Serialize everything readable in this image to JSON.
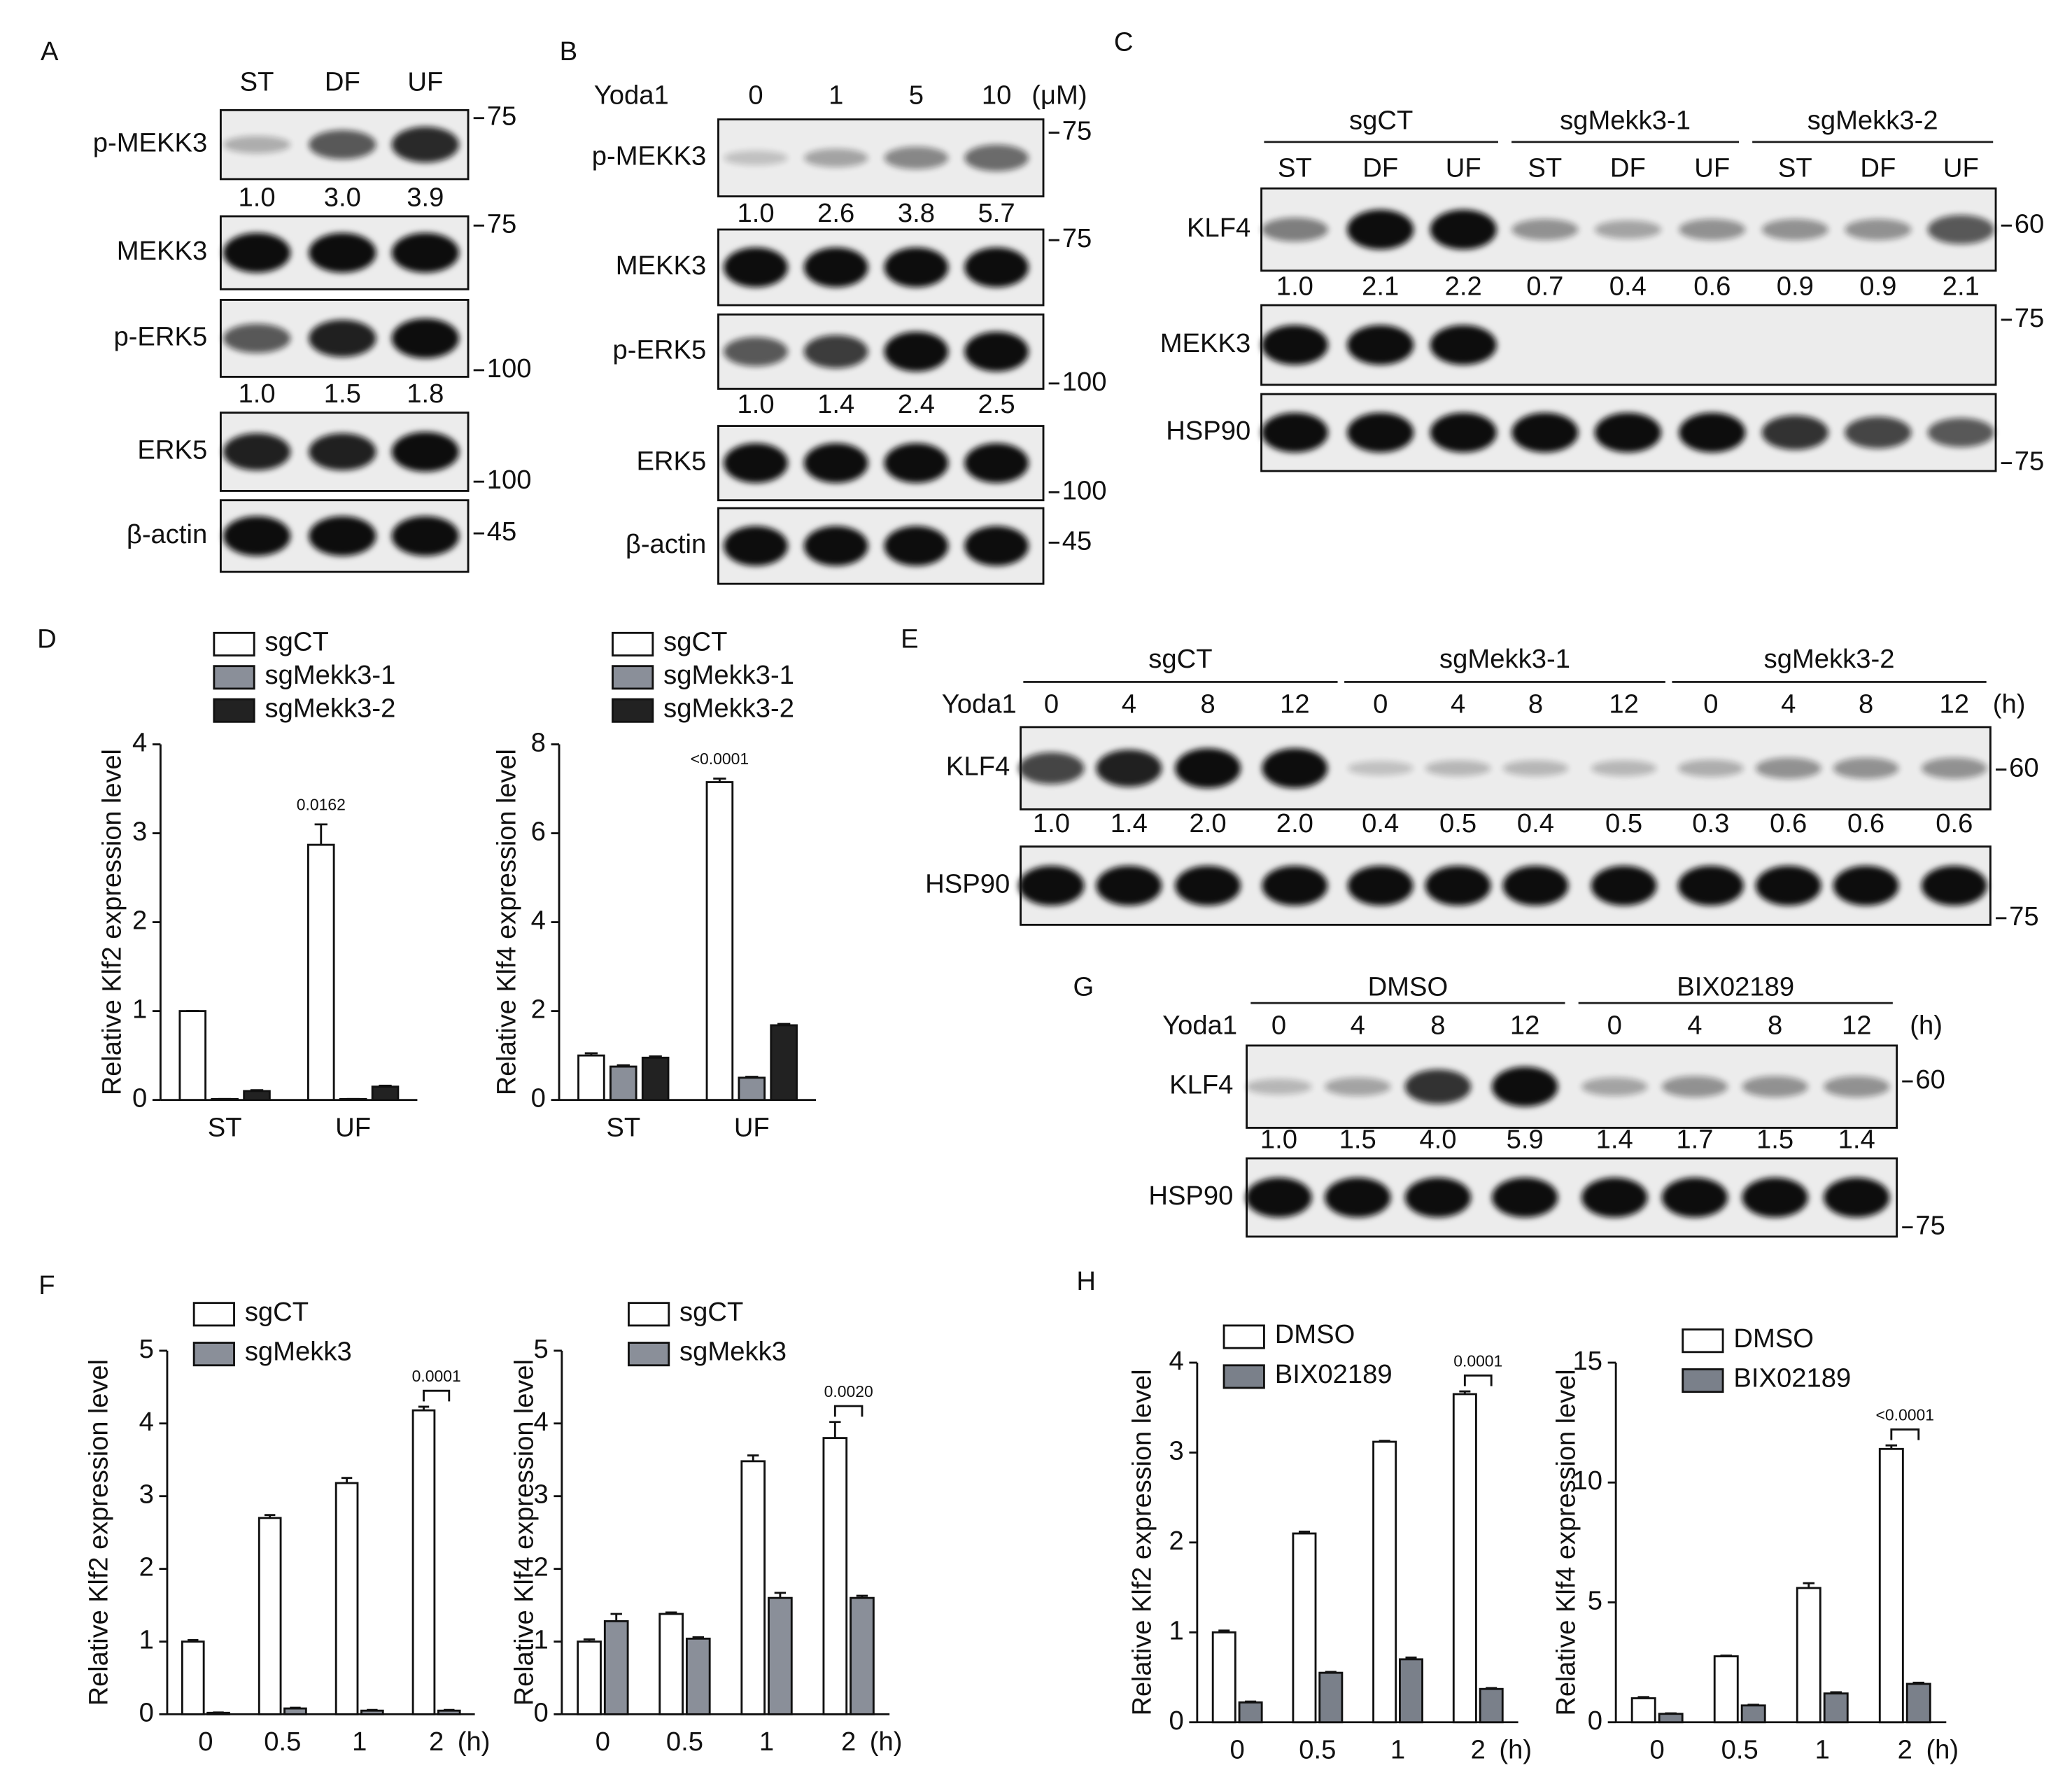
{
  "figure": {
    "panel_labels": [
      "D",
      "F",
      "H"
    ]
  },
  "blots": [
    {
      "label": "A",
      "lanes": [
        "ST",
        "DF",
        "UF"
      ],
      "rows": [
        {
          "name": "p-MEKK3",
          "marker": "75",
          "quant": [
            "1.0",
            "3.0",
            "3.9"
          ]
        },
        {
          "name": "MEKK3",
          "marker": "75"
        },
        {
          "name": "p-ERK5",
          "marker": "100",
          "quant": [
            "1.0",
            "1.5",
            "1.8"
          ]
        },
        {
          "name": "ERK5",
          "marker": "100"
        },
        {
          "name": "β-actin",
          "marker": "45"
        }
      ]
    },
    {
      "label": "B",
      "treatment": "Yoda1",
      "lanes": [
        "0",
        "1",
        "5",
        "10"
      ],
      "unit": "(μM)",
      "rows": [
        {
          "name": "p-MEKK3",
          "marker": "75",
          "quant": [
            "1.0",
            "2.6",
            "3.8",
            "5.7"
          ]
        },
        {
          "name": "MEKK3",
          "marker": "75"
        },
        {
          "name": "p-ERK5",
          "marker": "100",
          "quant": [
            "1.0",
            "1.4",
            "2.4",
            "2.5"
          ]
        },
        {
          "name": "ERK5",
          "marker": "100"
        },
        {
          "name": "β-actin",
          "marker": "45"
        }
      ]
    },
    {
      "label": "C",
      "groups": [
        "sgCT",
        "sgMekk3-1",
        "sgMekk3-2"
      ],
      "lanes": [
        "ST",
        "DF",
        "UF",
        "ST",
        "DF",
        "UF",
        "ST",
        "DF",
        "UF"
      ],
      "rows": [
        {
          "name": "KLF4",
          "marker": "60",
          "quant": [
            "1.0",
            "2.1",
            "2.2",
            "0.7",
            "0.4",
            "0.6",
            "0.9",
            "0.9",
            "2.1"
          ]
        },
        {
          "name": "MEKK3",
          "marker": "75"
        },
        {
          "name": "HSP90",
          "marker": "75"
        }
      ]
    },
    {
      "label": "E",
      "groups": [
        "sgCT",
        "sgMekk3-1",
        "sgMekk3-2"
      ],
      "treatment": "Yoda1",
      "lanes": [
        "0",
        "4",
        "8",
        "12",
        "0",
        "4",
        "8",
        "12",
        "0",
        "4",
        "8",
        "12"
      ],
      "unit": "(h)",
      "rows": [
        {
          "name": "KLF4",
          "marker": "60",
          "quant": [
            "1.0",
            "1.4",
            "2.0",
            "2.0",
            "0.4",
            "0.5",
            "0.4",
            "0.5",
            "0.3",
            "0.6",
            "0.6",
            "0.6"
          ]
        },
        {
          "name": "HSP90",
          "marker": "75"
        }
      ]
    },
    {
      "label": "G",
      "groups": [
        "DMSO",
        "BIX02189"
      ],
      "treatment": "Yoda1",
      "lanes": [
        "0",
        "4",
        "8",
        "12",
        "0",
        "4",
        "8",
        "12"
      ],
      "unit": "(h)",
      "rows": [
        {
          "name": "KLF4",
          "marker": "60",
          "quant": [
            "1.0",
            "1.5",
            "4.0",
            "5.9",
            "1.4",
            "1.7",
            "1.5",
            "1.4"
          ]
        },
        {
          "name": "HSP90",
          "marker": "75"
        }
      ]
    }
  ],
  "chart_data": [
    {
      "type": "bar",
      "y_label": "Relative Klf2 expression level",
      "categories": [
        "ST",
        "UF"
      ],
      "series": [
        {
          "name": "sgCT",
          "color": "#ffffff",
          "values": [
            1.0,
            2.87
          ],
          "errors": [
            0,
            0.23
          ]
        },
        {
          "name": "sgMekk3-1",
          "color": "#8a8f99",
          "values": [
            0.01,
            0.01
          ],
          "errors": [
            0,
            0
          ]
        },
        {
          "name": "sgMekk3-2",
          "color": "#222222",
          "values": [
            0.1,
            0.15
          ],
          "errors": [
            0.01,
            0.01
          ]
        }
      ],
      "ylim": [
        0,
        4
      ],
      "yticks": [
        0,
        1,
        2,
        3,
        4
      ],
      "annotation": "0.0162"
    },
    {
      "type": "bar",
      "y_label": "Relative Klf4 expression level",
      "categories": [
        "ST",
        "UF"
      ],
      "series": [
        {
          "name": "sgCT",
          "color": "#ffffff",
          "values": [
            1.0,
            7.15
          ],
          "errors": [
            0.05,
            0.08
          ]
        },
        {
          "name": "sgMekk3-1",
          "color": "#8a8f99",
          "values": [
            0.75,
            0.5
          ],
          "errors": [
            0.03,
            0.02
          ]
        },
        {
          "name": "sgMekk3-2",
          "color": "#222222",
          "values": [
            0.95,
            1.68
          ],
          "errors": [
            0.03,
            0.03
          ]
        }
      ],
      "ylim": [
        0,
        8
      ],
      "yticks": [
        0,
        2,
        4,
        6,
        8
      ],
      "annotation": "<0.0001"
    },
    {
      "type": "bar",
      "y_label": "Relative Klf2 expression level",
      "categories": [
        "0",
        "0.5",
        "1",
        "2"
      ],
      "x_unit": "(h)",
      "series": [
        {
          "name": "sgCT",
          "color": "#ffffff",
          "values": [
            1.0,
            2.7,
            3.18,
            4.18
          ],
          "errors": [
            0.02,
            0.04,
            0.07,
            0.05
          ]
        },
        {
          "name": "sgMekk3",
          "color": "#8a8f99",
          "values": [
            0.02,
            0.08,
            0.05,
            0.05
          ],
          "errors": [
            0.005,
            0.01,
            0.01,
            0.01
          ]
        }
      ],
      "ylim": [
        0,
        5
      ],
      "yticks": [
        0,
        1,
        2,
        3,
        4,
        5
      ],
      "annotation": "0.0001"
    },
    {
      "type": "bar",
      "y_label": "Relative Klf4 expression level",
      "categories": [
        "0",
        "0.5",
        "1",
        "2"
      ],
      "x_unit": "(h)",
      "series": [
        {
          "name": "sgCT",
          "color": "#ffffff",
          "values": [
            1.0,
            1.38,
            3.48,
            3.8
          ],
          "errors": [
            0.03,
            0.02,
            0.08,
            0.22
          ]
        },
        {
          "name": "sgMekk3",
          "color": "#8a8f99",
          "values": [
            1.28,
            1.04,
            1.6,
            1.6
          ],
          "errors": [
            0.1,
            0.02,
            0.07,
            0.03
          ]
        }
      ],
      "ylim": [
        0,
        5
      ],
      "yticks": [
        0,
        1,
        2,
        3,
        4,
        5
      ],
      "annotation": "0.0020"
    },
    {
      "type": "bar",
      "y_label": "Relative Klf2 expression level",
      "categories": [
        "0",
        "0.5",
        "1",
        "2"
      ],
      "x_unit": "(h)",
      "series": [
        {
          "name": "DMSO",
          "color": "#ffffff",
          "values": [
            1.0,
            2.1,
            3.12,
            3.65
          ],
          "errors": [
            0.02,
            0.02,
            0.01,
            0.03
          ]
        },
        {
          "name": "BIX02189",
          "color": "#7a808a",
          "values": [
            0.22,
            0.55,
            0.7,
            0.37
          ],
          "errors": [
            0.01,
            0.01,
            0.02,
            0.01
          ]
        }
      ],
      "ylim": [
        0,
        4
      ],
      "yticks": [
        0,
        1,
        2,
        3,
        4
      ],
      "annotation": "0.0001"
    },
    {
      "type": "bar",
      "y_label": "Relative Klf4 expression level",
      "categories": [
        "0",
        "0.5",
        "1",
        "2"
      ],
      "x_unit": "(h)",
      "series": [
        {
          "name": "DMSO",
          "color": "#ffffff",
          "values": [
            1.0,
            2.75,
            5.6,
            11.4
          ],
          "errors": [
            0.05,
            0.03,
            0.2,
            0.15
          ]
        },
        {
          "name": "BIX02189",
          "color": "#7a808a",
          "values": [
            0.35,
            0.7,
            1.2,
            1.6
          ],
          "errors": [
            0.02,
            0.03,
            0.05,
            0.05
          ]
        }
      ],
      "ylim": [
        0,
        15
      ],
      "yticks": [
        0,
        5,
        10,
        15
      ],
      "annotation": "<0.0001"
    }
  ]
}
